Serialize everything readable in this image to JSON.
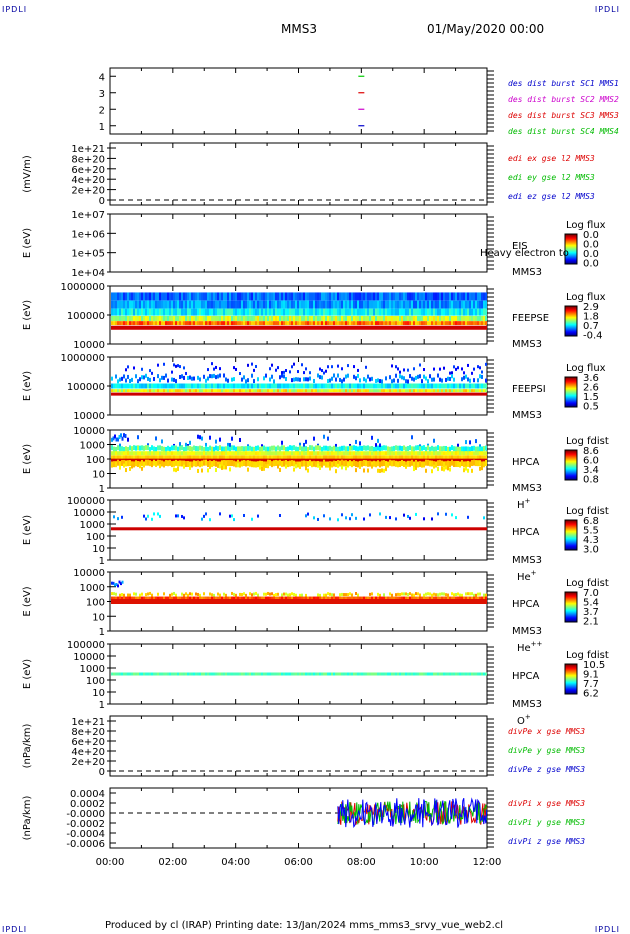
{
  "page": {
    "corner_label": "IPDLI",
    "spacecraft": "MMS3",
    "datetime": "01/May/2020 00:00",
    "footer": "Produced by cl (IRAP)   Printing date: 13/Jan/2024   mms_mms3_srvy_vue_web2.cl"
  },
  "chart_data": [
    {
      "type": "scatter",
      "ylim": [
        0.5,
        4.5
      ],
      "ticks": [
        "1",
        "2",
        "3",
        "4"
      ],
      "ylabel": "",
      "points": [
        {
          "x": 8.0,
          "y": 4,
          "color": "#00cc00"
        },
        {
          "x": 8.0,
          "y": 3,
          "color": "#dd0000"
        },
        {
          "x": 8.0,
          "y": 2,
          "color": "#cc00cc"
        },
        {
          "x": 8.0,
          "y": 1,
          "color": "#0000cc"
        }
      ],
      "legend": [
        {
          "text": "des dist burst SC1 MMS1",
          "color": "#0000cc"
        },
        {
          "text": "des dist burst SC2 MMS2",
          "color": "#cc00cc"
        },
        {
          "text": "des dist burst SC3 MMS3",
          "color": "#dd0000"
        },
        {
          "text": "des dist burst SC4 MMS4",
          "color": "#00bb00"
        }
      ]
    },
    {
      "type": "line",
      "ylabel": "(mV/m)",
      "ylim": [
        0,
        1.1e+21
      ],
      "ticks": [
        "0",
        "2e+20",
        "4e+20",
        "6e+20",
        "8e+20",
        "1e+21"
      ],
      "zero_line": true,
      "legend": [
        {
          "text": "edi ex gse l2 MMS3",
          "color": "#dd0000"
        },
        {
          "text": "edi ey gse l2 MMS3",
          "color": "#00bb00"
        },
        {
          "text": "edi ez gse l2 MMS3",
          "color": "#0000cc"
        }
      ]
    },
    {
      "type": "heatmap",
      "ylabel": "E (eV)",
      "log": true,
      "ticks": [
        "1e+04",
        "1e+05",
        "1e+06",
        "1e+07"
      ],
      "instrument": "EIS",
      "sc": "MMS3",
      "overlay": "Heavy electron to",
      "cbar_title": "Log flux",
      "cbar_ticks": [
        "0.0",
        "0.0",
        "0.0",
        "0.0"
      ]
    },
    {
      "type": "heatmap",
      "ylabel": "E (eV)",
      "log": true,
      "ticks": [
        "10000",
        "100000",
        "1000000"
      ],
      "instrument": "FEEPSE",
      "sc": "MMS3",
      "cbar_title": "Log flux",
      "cbar_ticks": [
        "2.9",
        "1.8",
        "0.7",
        "-0.4"
      ]
    },
    {
      "type": "heatmap",
      "ylabel": "E (eV)",
      "log": true,
      "ticks": [
        "10000",
        "100000",
        "1000000"
      ],
      "instrument": "FEEPSI",
      "sc": "MMS3",
      "cbar_title": "Log flux",
      "cbar_ticks": [
        "3.6",
        "2.6",
        "1.5",
        "0.5"
      ]
    },
    {
      "type": "heatmap",
      "ylabel": "E (eV)",
      "log": true,
      "ticks": [
        "1",
        "10",
        "100",
        "1000",
        "10000"
      ],
      "instrument": "HPCA",
      "sc": "MMS3",
      "species": "H",
      "species_sup": "+",
      "cbar_title": "Log fdist",
      "cbar_ticks": [
        "8.6",
        "6.0",
        "3.4",
        "0.8"
      ]
    },
    {
      "type": "heatmap",
      "ylabel": "E (eV)",
      "log": true,
      "ticks": [
        "1",
        "10",
        "100",
        "1000",
        "10000",
        "100000"
      ],
      "instrument": "HPCA",
      "sc": "MMS3",
      "species": "He",
      "species_sup": "+",
      "cbar_title": "Log fdist",
      "cbar_ticks": [
        "6.8",
        "5.5",
        "4.3",
        "3.0"
      ]
    },
    {
      "type": "heatmap",
      "ylabel": "E (eV)",
      "log": true,
      "ticks": [
        "1",
        "10",
        "100",
        "1000",
        "10000"
      ],
      "instrument": "HPCA",
      "sc": "MMS3",
      "species": "He",
      "species_sup": "++",
      "cbar_title": "Log fdist",
      "cbar_ticks": [
        "7.0",
        "5.4",
        "3.7",
        "2.1"
      ]
    },
    {
      "type": "heatmap",
      "ylabel": "E (eV)",
      "log": true,
      "ticks": [
        "1",
        "10",
        "100",
        "1000",
        "10000",
        "100000"
      ],
      "instrument": "HPCA",
      "sc": "MMS3",
      "species": "O",
      "species_sup": "+",
      "cbar_title": "Log fdist",
      "cbar_ticks": [
        "10.5",
        "9.1",
        "7.7",
        "6.2"
      ]
    },
    {
      "type": "line",
      "ylabel": "(nPa/km)",
      "ylim": [
        0,
        1.1e+21
      ],
      "ticks": [
        "0",
        "2e+20",
        "4e+20",
        "6e+20",
        "8e+20",
        "1e+21"
      ],
      "zero_line": true,
      "legend": [
        {
          "text": "divPe x gse MMS3",
          "color": "#dd0000"
        },
        {
          "text": "divPe y gse MMS3",
          "color": "#00bb00"
        },
        {
          "text": "divPe z gse MMS3",
          "color": "#0000cc"
        }
      ]
    },
    {
      "type": "line",
      "ylabel": "(nPa/km)",
      "ylim": [
        -0.0007,
        0.0005
      ],
      "ticks": [
        "-0.0006",
        "-0.0004",
        "-0.0002",
        "-0.0000",
        "0.0002",
        "0.0004"
      ],
      "zero_line": true,
      "data_start": 7.25,
      "legend": [
        {
          "text": "divPi x gse MMS3",
          "color": "#dd0000"
        },
        {
          "text": "divPi y gse MMS3",
          "color": "#00bb00"
        },
        {
          "text": "divPi z gse MMS3",
          "color": "#0000cc"
        }
      ]
    }
  ],
  "xaxis": {
    "range": [
      0,
      12
    ],
    "ticks": [
      "00:00",
      "02:00",
      "04:00",
      "06:00",
      "08:00",
      "10:00",
      "12:00"
    ]
  }
}
